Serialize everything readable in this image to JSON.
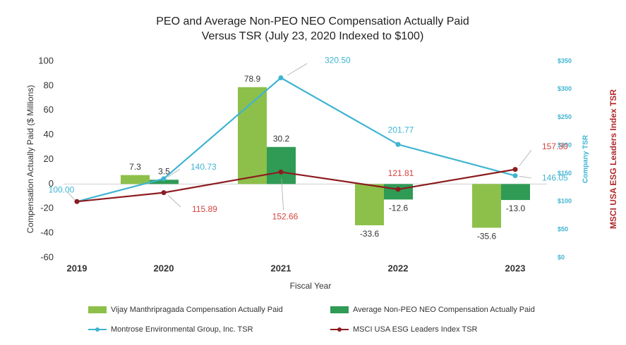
{
  "chart_data": {
    "type": "bar_line",
    "title": [
      "PEO and Average Non-PEO NEO Compensation Actually Paid",
      "Versus TSR (July 23, 2020 Indexed to $100)"
    ],
    "x_label": "Fiscal Year",
    "y_label": "Compensation Actually Paid ($ Millions)",
    "y2_label": "Company TSR",
    "y3_label": "MSCI USA ESG Leaders Index TSR",
    "categories": [
      "2019",
      "2020",
      "2021",
      "2022",
      "2023"
    ],
    "ylim": [
      -60,
      100
    ],
    "yticks": [
      100,
      80,
      60,
      40,
      20,
      0,
      -20,
      -40,
      -60
    ],
    "y2lim": [
      0,
      350
    ],
    "y2ticks": [
      {
        "value": 350,
        "label": "$350"
      },
      {
        "value": 300,
        "label": "$300"
      },
      {
        "value": 250,
        "label": "$250"
      },
      {
        "value": 200,
        "label": "$200"
      },
      {
        "value": 150,
        "label": "$150"
      },
      {
        "value": 100,
        "label": "$100"
      },
      {
        "value": 50,
        "label": "$50"
      },
      {
        "value": 0,
        "label": "$0"
      }
    ],
    "legend": "bottom",
    "series": [
      {
        "name": "Vijay Manthripragada Compensation Actually Paid",
        "type": "bar",
        "color": "#8dc04a",
        "values": [
          null,
          7.3,
          78.9,
          -33.6,
          -35.6
        ],
        "value_labels": [
          null,
          "7.3",
          "78.9",
          "-33.6",
          "-35.6"
        ]
      },
      {
        "name": "Average Non-PEO NEO Compensation Actually Paid",
        "type": "bar",
        "color": "#2f9b55",
        "values": [
          null,
          3.5,
          30.2,
          -12.6,
          -13.0
        ],
        "value_labels": [
          null,
          "3.5",
          "30.2",
          "-12.6",
          "-13.0"
        ]
      },
      {
        "name": "Montrose Environmental Group, Inc. TSR",
        "type": "line",
        "axis": "y2",
        "color": "#3fb4d2",
        "label_color": "#3fb4d2",
        "values": [
          100,
          140.73,
          320.5,
          201.77,
          146.05
        ],
        "value_labels": [
          "100.00",
          "140.73",
          "320.50",
          "201.77",
          "146.05"
        ]
      },
      {
        "name": "MSCI USA ESG Leaders Index TSR",
        "type": "line",
        "axis": "y2",
        "color": "#8c1c1f",
        "label_color": "#d5433f",
        "values": [
          100,
          115.89,
          152.66,
          121.81,
          157.3
        ],
        "value_labels": [
          "100.00",
          "115.89",
          "152.66",
          "121.81",
          "157.30"
        ]
      }
    ]
  }
}
